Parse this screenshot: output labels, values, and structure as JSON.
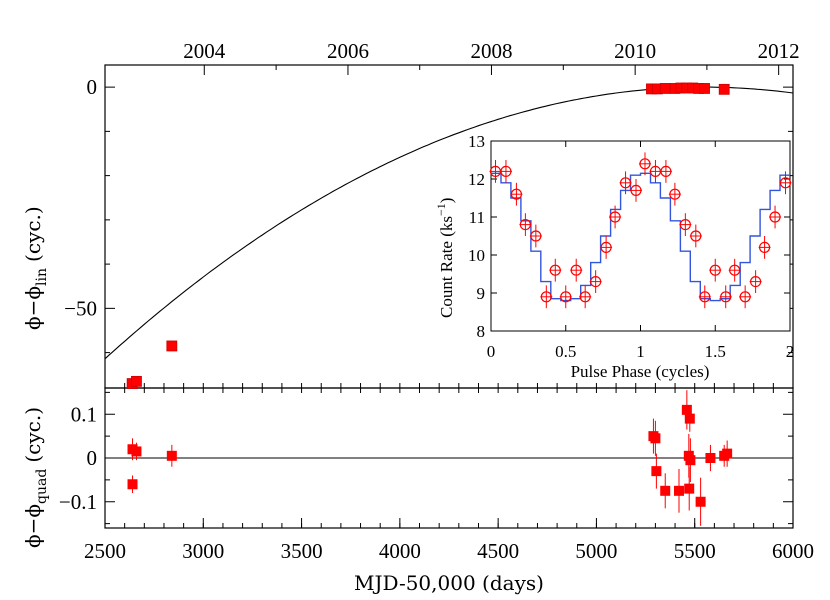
{
  "chart_data": [
    {
      "panel": "top",
      "type": "scatter",
      "x_top_axis_label_years": [
        "2004",
        "2006",
        "2008",
        "2010",
        "2012"
      ],
      "x_top_axis_mjd": [
        3005,
        3736,
        4466,
        5197,
        5927
      ],
      "ylabel_main": "ϕ−ϕ",
      "ylabel_sub": "lin",
      "ylabel_unit": "(cyc.)",
      "ylim": [
        -68,
        5
      ],
      "yticks": [
        {
          "value": 0,
          "label": "0"
        },
        {
          "value": -50,
          "label": "−50"
        }
      ],
      "fit_curve": {
        "peak_x": 5550,
        "peak_y": 0,
        "curvature": 6.6e-06
      },
      "points": [
        {
          "x": 2638,
          "y": -67
        },
        {
          "x": 2660,
          "y": -66.5
        },
        {
          "x": 2840,
          "y": -58.5
        },
        {
          "x": 5280,
          "y": -0.4
        },
        {
          "x": 5310,
          "y": -0.4
        },
        {
          "x": 5350,
          "y": -0.3
        },
        {
          "x": 5400,
          "y": -0.3
        },
        {
          "x": 5430,
          "y": -0.2
        },
        {
          "x": 5460,
          "y": -0.2
        },
        {
          "x": 5490,
          "y": -0.2
        },
        {
          "x": 5520,
          "y": -0.3
        },
        {
          "x": 5550,
          "y": -0.3
        },
        {
          "x": 5650,
          "y": -0.5
        }
      ]
    },
    {
      "panel": "bottom",
      "type": "scatter",
      "xlabel": "MJD-50,000 (days)",
      "xlim": [
        2500,
        6000
      ],
      "xticks": [
        2500,
        3000,
        3500,
        4000,
        4500,
        5000,
        5500,
        6000
      ],
      "xtick_labels": [
        "2500",
        "3000",
        "3500",
        "4000",
        "4500",
        "5000",
        "5500",
        "6000"
      ],
      "ylabel_main": "ϕ−ϕ",
      "ylabel_sub": "quad",
      "ylabel_unit": "(cyc.)",
      "ylim": [
        -0.16,
        0.16
      ],
      "yticks": [
        {
          "value": 0.1,
          "label": "0.1"
        },
        {
          "value": 0,
          "label": "0"
        },
        {
          "value": -0.1,
          "label": "−0.1"
        }
      ],
      "points": [
        {
          "x": 2640,
          "y": 0.02,
          "err": 0.025
        },
        {
          "x": 2660,
          "y": 0.015,
          "err": 0.02
        },
        {
          "x": 2640,
          "y": -0.06,
          "err": 0.02
        },
        {
          "x": 2840,
          "y": 0.005,
          "err": 0.025
        },
        {
          "x": 5290,
          "y": 0.05,
          "err": 0.04
        },
        {
          "x": 5300,
          "y": 0.045,
          "err": 0.04
        },
        {
          "x": 5305,
          "y": -0.03,
          "err": 0.04
        },
        {
          "x": 5350,
          "y": -0.075,
          "err": 0.04
        },
        {
          "x": 5420,
          "y": -0.075,
          "err": 0.05
        },
        {
          "x": 5460,
          "y": 0.11,
          "err": 0.045
        },
        {
          "x": 5475,
          "y": 0.09,
          "err": 0.03
        },
        {
          "x": 5470,
          "y": 0.005,
          "err": 0.05
        },
        {
          "x": 5478,
          "y": -0.005,
          "err": 0.05
        },
        {
          "x": 5472,
          "y": -0.07,
          "err": 0.05
        },
        {
          "x": 5530,
          "y": -0.1,
          "err": 0.055
        },
        {
          "x": 5580,
          "y": 0.0,
          "err": 0.03
        },
        {
          "x": 5650,
          "y": 0.005,
          "err": 0.025
        },
        {
          "x": 5665,
          "y": 0.01,
          "err": 0.03
        }
      ]
    },
    {
      "panel": "inset",
      "type": "line",
      "xlabel": "Pulse Phase (cycles)",
      "ylabel": "Count Rate (ks",
      "ylabel_sup": "−1",
      "ylabel_close": ")",
      "xlim": [
        0,
        2
      ],
      "ylim": [
        8,
        13
      ],
      "xticks": [
        {
          "value": 0,
          "label": "0"
        },
        {
          "value": 0.5,
          "label": "0.5"
        },
        {
          "value": 1,
          "label": "1"
        },
        {
          "value": 1.5,
          "label": "1.5"
        },
        {
          "value": 2,
          "label": "2"
        }
      ],
      "yticks": [
        {
          "value": 8,
          "label": "8"
        },
        {
          "value": 9,
          "label": "9"
        },
        {
          "value": 10,
          "label": "10"
        },
        {
          "value": 11,
          "label": "11"
        },
        {
          "value": 12,
          "label": "12"
        },
        {
          "value": 13,
          "label": "13"
        }
      ],
      "data_points": {
        "phase": [
          0.03,
          0.1,
          0.17,
          0.23,
          0.3,
          0.37,
          0.43,
          0.5,
          0.57,
          0.63,
          0.7,
          0.77,
          0.83,
          0.9,
          0.97,
          1.03,
          1.1,
          1.17,
          1.23,
          1.3,
          1.37,
          1.43,
          1.5,
          1.57,
          1.63,
          1.7,
          1.77,
          1.83,
          1.9,
          1.97
        ],
        "rate": [
          12.2,
          12.2,
          11.6,
          10.8,
          10.5,
          8.9,
          9.6,
          8.9,
          9.6,
          8.9,
          9.3,
          10.2,
          11.0,
          11.9,
          11.7,
          12.4,
          12.2,
          12.2,
          11.6,
          10.8,
          10.5,
          8.9,
          9.6,
          8.9,
          9.6,
          8.9,
          9.3,
          10.2,
          11.0,
          11.9
        ],
        "err": [
          0.3,
          0.3,
          0.3,
          0.3,
          0.3,
          0.3,
          0.3,
          0.3,
          0.3,
          0.3,
          0.3,
          0.3,
          0.3,
          0.3,
          0.3,
          0.3,
          0.3,
          0.3,
          0.3,
          0.3,
          0.3,
          0.3,
          0.3,
          0.3,
          0.3,
          0.3,
          0.3,
          0.3,
          0.3,
          0.3
        ]
      },
      "model": {
        "phase_bins": [
          0.0,
          0.067,
          0.133,
          0.2,
          0.267,
          0.333,
          0.4,
          0.467,
          0.533,
          0.6,
          0.667,
          0.733,
          0.8,
          0.867,
          0.933,
          1.0,
          1.067,
          1.133,
          1.2,
          1.267,
          1.333,
          1.4,
          1.467,
          1.533,
          1.6,
          1.667,
          1.733,
          1.8,
          1.867,
          1.933,
          2.0
        ],
        "rate": [
          12.15,
          11.9,
          11.5,
          10.9,
          10.1,
          9.3,
          8.85,
          8.8,
          8.85,
          9.2,
          9.8,
          10.5,
          11.2,
          11.7,
          12.1,
          12.15,
          11.9,
          11.5,
          10.9,
          10.1,
          9.3,
          8.85,
          8.8,
          8.85,
          9.2,
          9.8,
          10.5,
          11.2,
          11.7,
          12.1
        ]
      }
    }
  ],
  "colors": {
    "points": "#ff0000",
    "points_dark": "#cc0000",
    "model": "#3355dd",
    "axis": "#000000",
    "fit": "#000000"
  }
}
